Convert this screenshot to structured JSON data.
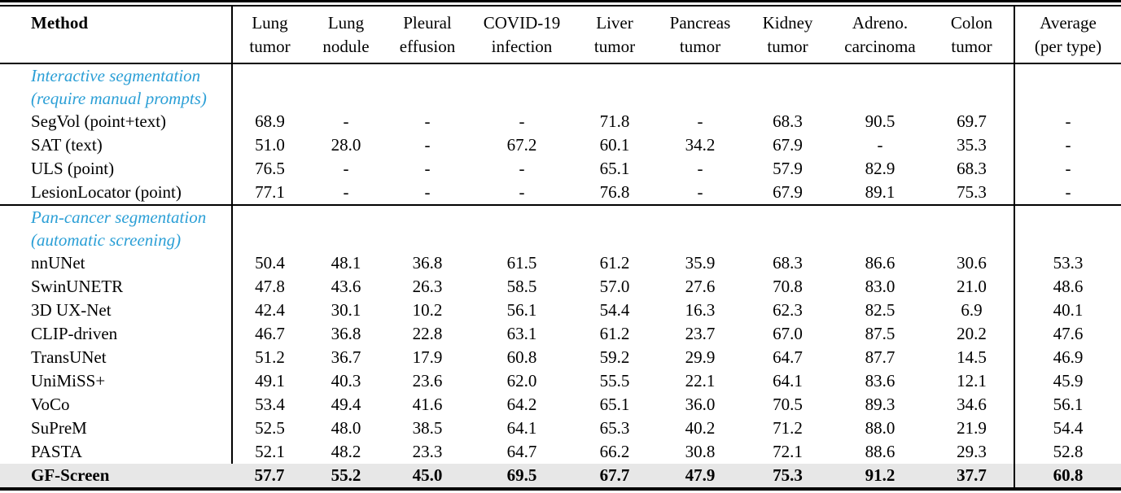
{
  "colors": {
    "section_label_text": "#2B9FD6",
    "highlight_row_bg": "#E7E7E7",
    "rule_color": "#000000",
    "text_color": "#000000",
    "background": "#FFFFFF"
  },
  "table": {
    "columns": [
      {
        "id": "method",
        "line1": "Method",
        "line2": ""
      },
      {
        "id": "lung-tumor",
        "line1": "Lung",
        "line2": "tumor"
      },
      {
        "id": "lung-nodule",
        "line1": "Lung",
        "line2": "nodule"
      },
      {
        "id": "pleural-effusion",
        "line1": "Pleural",
        "line2": "effusion"
      },
      {
        "id": "covid-19-infection",
        "line1": "COVID-19",
        "line2": "infection"
      },
      {
        "id": "liver-tumor",
        "line1": "Liver",
        "line2": "tumor"
      },
      {
        "id": "pancreas-tumor",
        "line1": "Pancreas",
        "line2": "tumor"
      },
      {
        "id": "kidney-tumor",
        "line1": "Kidney",
        "line2": "tumor"
      },
      {
        "id": "adreno-carcinoma",
        "line1": "Adreno.",
        "line2": "carcinoma"
      },
      {
        "id": "colon-tumor",
        "line1": "Colon",
        "line2": "tumor"
      },
      {
        "id": "average",
        "line1": "Average",
        "line2": "(per type)"
      }
    ],
    "sections": [
      {
        "label_line1": "Interactive segmentation",
        "label_line2": "(require manual prompts)",
        "rows": [
          {
            "method": "SegVol (point+text)",
            "values": [
              "68.9",
              "-",
              "-",
              "-",
              "71.8",
              "-",
              "68.3",
              "90.5",
              "69.7",
              "-"
            ],
            "highlight": false
          },
          {
            "method": "SAT (text)",
            "values": [
              "51.0",
              "28.0",
              "-",
              "67.2",
              "60.1",
              "34.2",
              "67.9",
              "-",
              "35.3",
              "-"
            ],
            "highlight": false
          },
          {
            "method": "ULS (point)",
            "values": [
              "76.5",
              "-",
              "-",
              "-",
              "65.1",
              "-",
              "57.9",
              "82.9",
              "68.3",
              "-"
            ],
            "highlight": false
          },
          {
            "method": "LesionLocator (point)",
            "values": [
              "77.1",
              "-",
              "-",
              "-",
              "76.8",
              "-",
              "67.9",
              "89.1",
              "75.3",
              "-"
            ],
            "highlight": false
          }
        ]
      },
      {
        "label_line1": "Pan-cancer segmentation",
        "label_line2": "(automatic screening)",
        "rows": [
          {
            "method": "nnUNet",
            "values": [
              "50.4",
              "48.1",
              "36.8",
              "61.5",
              "61.2",
              "35.9",
              "68.3",
              "86.6",
              "30.6",
              "53.3"
            ],
            "highlight": false
          },
          {
            "method": "SwinUNETR",
            "values": [
              "47.8",
              "43.6",
              "26.3",
              "58.5",
              "57.0",
              "27.6",
              "70.8",
              "83.0",
              "21.0",
              "48.6"
            ],
            "highlight": false
          },
          {
            "method": "3D UX-Net",
            "values": [
              "42.4",
              "30.1",
              "10.2",
              "56.1",
              "54.4",
              "16.3",
              "62.3",
              "82.5",
              "6.9",
              "40.1"
            ],
            "highlight": false
          },
          {
            "method": "CLIP-driven",
            "values": [
              "46.7",
              "36.8",
              "22.8",
              "63.1",
              "61.2",
              "23.7",
              "67.0",
              "87.5",
              "20.2",
              "47.6"
            ],
            "highlight": false
          },
          {
            "method": "TransUNet",
            "values": [
              "51.2",
              "36.7",
              "17.9",
              "60.8",
              "59.2",
              "29.9",
              "64.7",
              "87.7",
              "14.5",
              "46.9"
            ],
            "highlight": false
          },
          {
            "method": "UniMiSS+",
            "values": [
              "49.1",
              "40.3",
              "23.6",
              "62.0",
              "55.5",
              "22.1",
              "64.1",
              "83.6",
              "12.1",
              "45.9"
            ],
            "highlight": false
          },
          {
            "method": "VoCo",
            "values": [
              "53.4",
              "49.4",
              "41.6",
              "64.2",
              "65.1",
              "36.0",
              "70.5",
              "89.3",
              "34.6",
              "56.1"
            ],
            "highlight": false
          },
          {
            "method": "SuPreM",
            "values": [
              "52.5",
              "48.0",
              "38.5",
              "64.1",
              "65.3",
              "40.2",
              "71.2",
              "88.0",
              "21.9",
              "54.4"
            ],
            "highlight": false
          },
          {
            "method": "PASTA",
            "values": [
              "52.1",
              "48.2",
              "23.3",
              "64.7",
              "66.2",
              "30.8",
              "72.1",
              "88.6",
              "29.3",
              "52.8"
            ],
            "highlight": false
          },
          {
            "method": "GF-Screen",
            "values": [
              "57.7",
              "55.2",
              "45.0",
              "69.5",
              "67.7",
              "47.9",
              "75.3",
              "91.2",
              "37.7",
              "60.8"
            ],
            "highlight": true
          }
        ]
      }
    ]
  }
}
